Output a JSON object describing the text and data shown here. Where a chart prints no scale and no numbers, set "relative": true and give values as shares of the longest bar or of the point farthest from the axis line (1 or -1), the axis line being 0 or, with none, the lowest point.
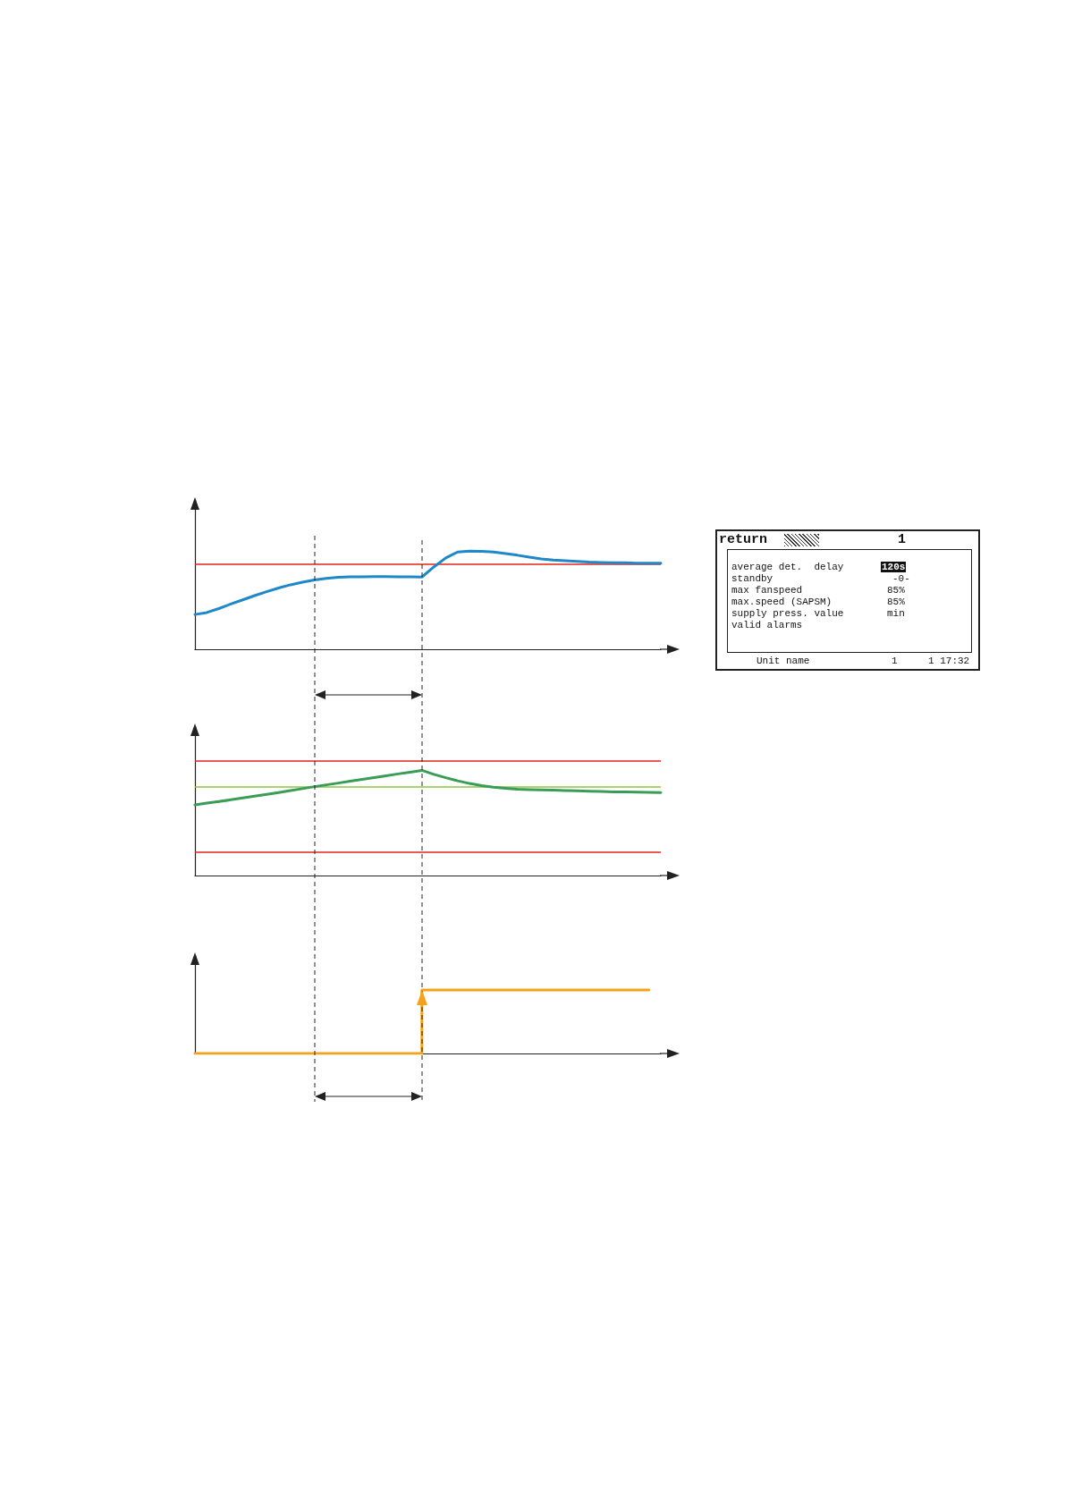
{
  "chart_data": [
    {
      "type": "line",
      "relative": true,
      "marker": "none",
      "categories": [
        null,
        null,
        null,
        null,
        null,
        null,
        null,
        null,
        null,
        null,
        null,
        null,
        null,
        null,
        null,
        null,
        null,
        null,
        null,
        null,
        null,
        null,
        null,
        null,
        null,
        null,
        null,
        null,
        null,
        null,
        null,
        null,
        null,
        null,
        null,
        null,
        null,
        null,
        null,
        null
      ],
      "series": [
        {
          "color": "#1e88c8",
          "values": [
            0.354,
            0.374,
            0.414,
            0.46,
            0.503,
            0.546,
            0.586,
            0.623,
            0.656,
            0.682,
            0.705,
            0.722,
            0.732,
            0.738,
            0.738,
            0.74,
            0.74,
            0.738,
            0.738,
            0.735,
            0.838,
            0.93,
            0.99,
            1,
            0.997,
            0.99,
            0.974,
            0.957,
            0.937,
            0.92,
            0.907,
            0.901,
            0.894,
            0.887,
            0.884,
            0.881,
            0.881,
            0.877,
            0.877,
            0.877
          ]
        }
      ],
      "ref_lines": [
        {
          "axis": "y",
          "value": 0.871,
          "color": "#e2231a"
        }
      ]
    },
    {
      "type": "line",
      "relative": true,
      "marker": "none",
      "categories": [
        null,
        null,
        null,
        null,
        null,
        null,
        null,
        null,
        null,
        null,
        null,
        null,
        null,
        null,
        null,
        null,
        null,
        null,
        null,
        null,
        null,
        null,
        null,
        null,
        null,
        null,
        null,
        null,
        null,
        null,
        null,
        null,
        null,
        null,
        null,
        null,
        null,
        null,
        null,
        null
      ],
      "series": [
        {
          "color": "#3a9d55",
          "values": [
            0.672,
            0.688,
            0.704,
            0.72,
            0.737,
            0.754,
            0.771,
            0.789,
            0.807,
            0.826,
            0.845,
            0.862,
            0.879,
            0.897,
            0.914,
            0.931,
            0.948,
            0.966,
            0.983,
            1,
            0.962,
            0.93,
            0.9,
            0.875,
            0.855,
            0.84,
            0.83,
            0.821,
            0.817,
            0.814,
            0.811,
            0.808,
            0.805,
            0.802,
            0.799,
            0.796,
            0.794,
            0.792,
            0.79,
            0.789
          ]
        }
      ],
      "ref_lines": [
        {
          "axis": "y",
          "value": 1.09,
          "color": "#e2231a"
        },
        {
          "axis": "y",
          "value": 0.845,
          "color": "#8cc63f"
        },
        {
          "axis": "y",
          "value": 0.217,
          "color": "#e2231a"
        }
      ]
    },
    {
      "type": "step",
      "relative": true,
      "marker": "none",
      "categories": [
        null,
        null,
        null,
        null,
        null,
        null,
        null,
        null,
        null,
        null,
        null,
        null,
        null,
        null,
        null,
        null,
        null,
        null,
        null,
        null,
        null,
        null,
        null,
        null,
        null,
        null,
        null,
        null,
        null,
        null,
        null,
        null,
        null,
        null,
        null,
        null,
        null,
        null,
        null,
        null
      ],
      "series": [
        {
          "color": "#f5a21b",
          "values": [
            0,
            0,
            0,
            0,
            0,
            0,
            0,
            0,
            0,
            0,
            0,
            0,
            0,
            0,
            0,
            0,
            0,
            0,
            0,
            0,
            1,
            1,
            1,
            1,
            1,
            1,
            1,
            1,
            1,
            1,
            1,
            1,
            1,
            1,
            1,
            1,
            1,
            1,
            1,
            null
          ]
        }
      ]
    },
    {
      "type": "other",
      "annotations": [
        "return",
        "1",
        "average det.  delay",
        "120s",
        "standby",
        "-0-",
        "max fanspeed",
        "85%",
        "max.speed (SAPSM)",
        "85%",
        "supply press. value",
        "min",
        "valid alarms",
        "Unit name",
        "1",
        "1 17:32"
      ]
    }
  ]
}
